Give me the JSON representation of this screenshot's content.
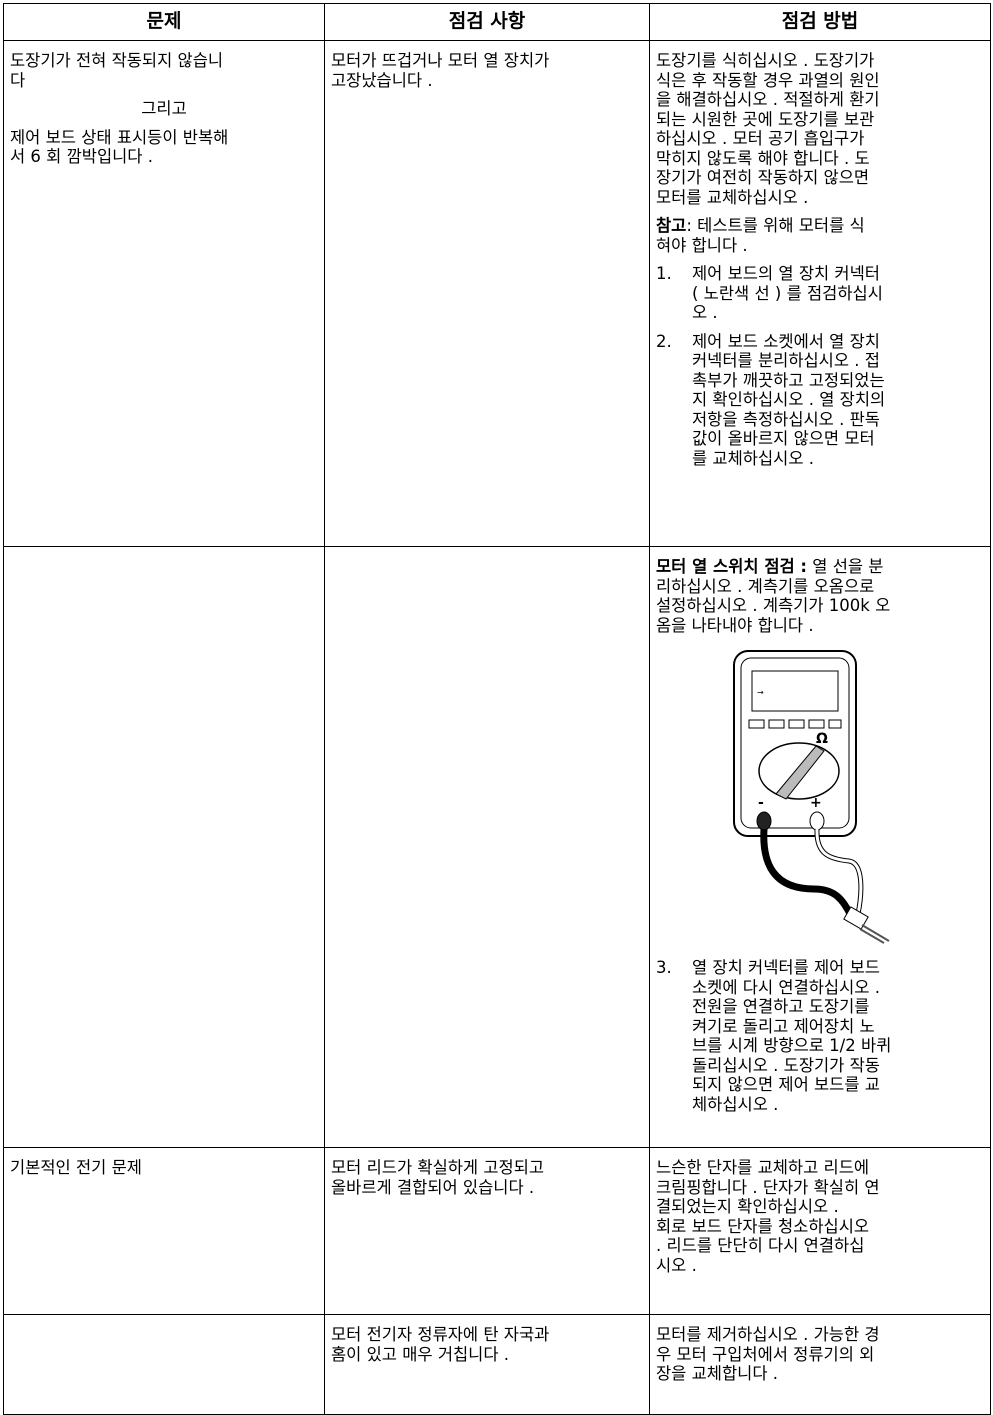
{
  "table": {
    "headers": [
      "문제",
      "점검 사항",
      "점검 방법"
    ],
    "rows": [
      {
        "problem": [
          {
            "lines": [
              "도장기가 전혀 작동되지 않습니",
              "다"
            ]
          },
          {
            "conjunction": "그리고"
          },
          {
            "lines": [
              "제어 보드 상태 표시등이 반복해",
              "서 6 회 깜박입니다 ."
            ]
          }
        ],
        "check": [
          {
            "lines": [
              "모터가 뜨겁거나 모터 열 장치가",
              "고장났습니다 ."
            ]
          }
        ],
        "method": [
          {
            "lines": [
              "도장기를 식히십시오 . 도장기가",
              "식은 후 작동할 경우 과열의 원인",
              "을 해결하십시오 . 적절하게 환기",
              "되는 시원한 곳에 도장기를 보관",
              "하십시오 . 모터 공기 흡입구가",
              "막히지 않도록 해야 합니다 . 도",
              "장기가 여전히 작동하지 않으면",
              "모터를 교체하십시오 ."
            ]
          },
          {
            "label": "참고",
            "lines": [
              ": 테스트를 위해 모터를 식",
              "혀야 합니다 ."
            ]
          },
          {
            "number": "1.",
            "lines": [
              "제어 보드의 열 장치 커넥터",
              "( 노란색 선 ) 를 점검하십시",
              "오 ."
            ]
          },
          {
            "number": "2.",
            "lines": [
              "제어 보드 소켓에서 열 장치",
              "커넥터를 분리하십시오 . 접",
              "촉부가 깨끗하고 고정되었는",
              "지 확인하십시오 . 열 장치의",
              "저항을 측정하십시오 . 판독",
              "값이 올바르지 않으면 모터",
              "를 교체하십시오 ."
            ]
          }
        ]
      },
      {
        "problem": [],
        "check": [],
        "method": [
          {
            "label": "모터 열 스위치 점검 :",
            "lines": [
              " 열 선을 분",
              "리하십시오 . 계측기를 오옴으로",
              "설정하십시오 . 계측기가 100k 오",
              "옴을 나타내야 합니다 ."
            ]
          }
        ],
        "method_after_figure": [
          {
            "number": "3.",
            "lines": [
              "열 장치 커넥터를 제어 보드",
              "소켓에 다시 연결하십시오 .",
              "전원을 연결하고 도장기를",
              "켜기로 돌리고 제어장치 노",
              "브를 시계 방향으로 1/2 바퀴",
              "돌리십시오 . 도장기가 작동",
              "되지 않으면 제어 보드를 교",
              "체하십시오 ."
            ]
          }
        ]
      },
      {
        "problem": [
          {
            "lines": [
              "기본적인 전기 문제"
            ]
          }
        ],
        "check": [
          {
            "lines": [
              "모터 리드가 확실하게 고정되고",
              "올바르게 결합되어 있습니다 ."
            ]
          }
        ],
        "method": [
          {
            "lines": [
              "느슨한 단자를 교체하고 리드에",
              "크림핑합니다 . 단자가 확실히 연",
              "결되었는지 확인하십시오 .",
              "회로 보드 단자를 청소하십시오",
              ". 리드를 단단히 다시 연결하십",
              "시오 ."
            ]
          }
        ]
      },
      {
        "problem": [],
        "check": [
          {
            "lines": [
              "모터 전기자 정류자에 탄 자국과",
              "홈이 있고 매우 거칩니다 ."
            ]
          }
        ],
        "method": [
          {
            "lines": [
              "모터를 제거하십시오 . 가능한 경",
              "우 모터 구입처에서 정류기의 외",
              "장을 교체합니다 ."
            ]
          }
        ]
      }
    ]
  }
}
